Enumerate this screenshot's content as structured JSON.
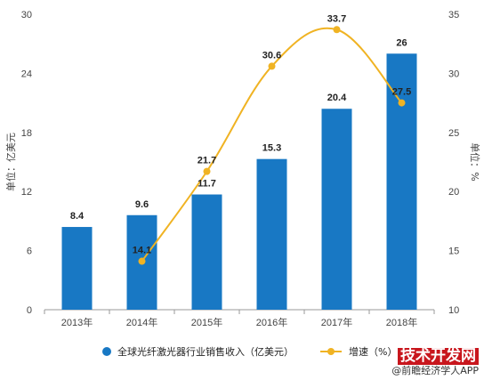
{
  "chart_data": {
    "type": "bar",
    "categories": [
      "2013年",
      "2014年",
      "2015年",
      "2016年",
      "2017年",
      "2018年"
    ],
    "series": [
      {
        "name": "全球光纤激光器行业销售收入（亿美元）",
        "type": "bar",
        "axis": "left",
        "values": [
          8.4,
          9.6,
          11.7,
          15.3,
          20.4,
          26
        ],
        "labels": [
          "8.4",
          "9.6",
          "11.7",
          "15.3",
          "20.4",
          "26"
        ]
      },
      {
        "name": "增速（%）",
        "type": "line",
        "axis": "right",
        "values": [
          null,
          14.1,
          21.7,
          30.6,
          33.7,
          27.5
        ],
        "labels": [
          "",
          "14.1",
          "21.7",
          "30.6",
          "33.7",
          "27.5"
        ]
      }
    ],
    "ylabel": "单位：亿美元",
    "y2label": "单位：%",
    "ylim": [
      0,
      30
    ],
    "y2lim": [
      10,
      35
    ],
    "yticks": [
      "0",
      "6",
      "12",
      "18",
      "24",
      "30"
    ],
    "y2ticks": [
      "10",
      "15",
      "20",
      "25",
      "30",
      "35"
    ],
    "grid": false,
    "legend_position": "bottom"
  },
  "colors": {
    "bar": "#1878c4",
    "line": "#f0b323"
  },
  "watermark": {
    "main": "技术开发网",
    "sub": "@前瞻经济学人APP"
  }
}
